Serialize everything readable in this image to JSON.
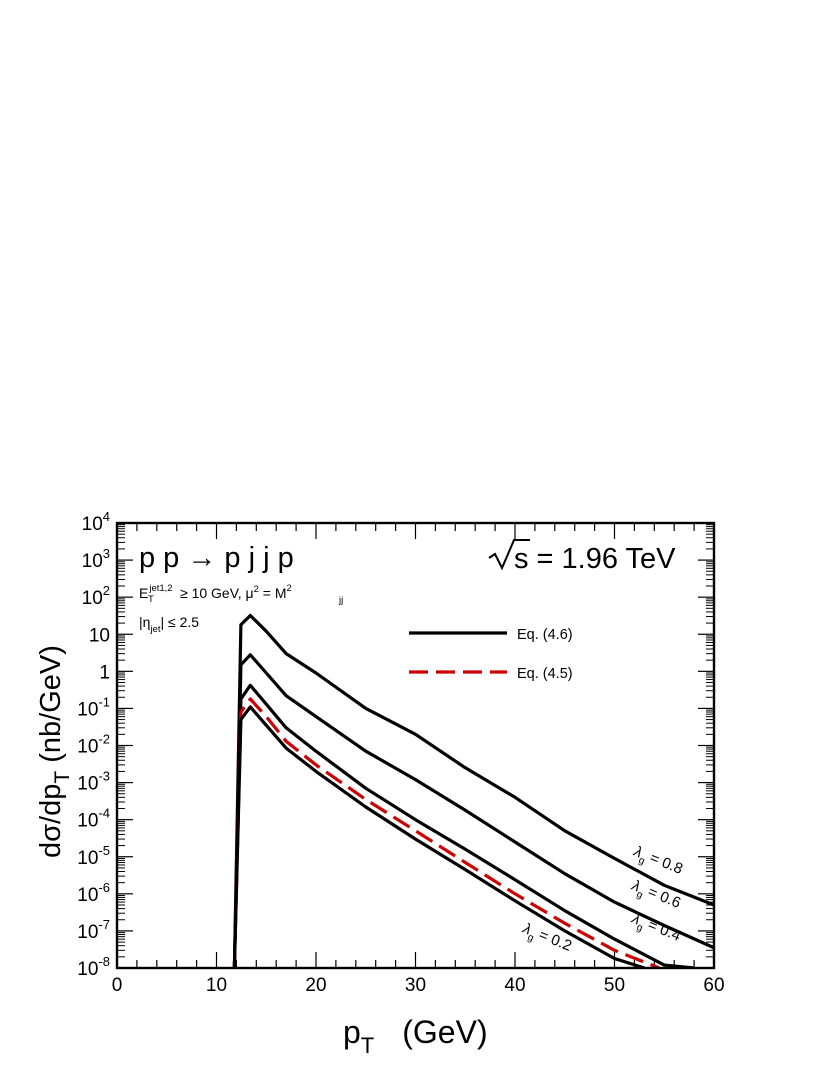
{
  "chart_data": {
    "type": "line",
    "ylog": true,
    "xlim": [
      0,
      60
    ],
    "ylim_exp": [
      -8,
      4
    ],
    "x_ticks": [
      0,
      10,
      20,
      30,
      40,
      50,
      60
    ],
    "x_tick_labels": [
      "0",
      "10",
      "20",
      "30",
      "40",
      "50",
      "60"
    ],
    "y_tick_labels": [
      {
        "exp": -8,
        "base": "10",
        "sup": "-8"
      },
      {
        "exp": -7,
        "base": "10",
        "sup": "-7"
      },
      {
        "exp": -6,
        "base": "10",
        "sup": "-6"
      },
      {
        "exp": -5,
        "base": "10",
        "sup": "-5"
      },
      {
        "exp": -4,
        "base": "10",
        "sup": "-4"
      },
      {
        "exp": -3,
        "base": "10",
        "sup": "-3"
      },
      {
        "exp": -2,
        "base": "10",
        "sup": "-2"
      },
      {
        "exp": -1,
        "base": "10",
        "sup": "-1"
      },
      {
        "exp": 0,
        "base": "1",
        "sup": ""
      },
      {
        "exp": 1,
        "base": "10",
        "sup": ""
      },
      {
        "exp": 2,
        "base": "10",
        "sup": "2"
      },
      {
        "exp": 3,
        "base": "10",
        "sup": "3"
      },
      {
        "exp": 4,
        "base": "10",
        "sup": "4"
      }
    ],
    "xlabel": {
      "main": "p",
      "sub": "T",
      "unit": "(GeV)"
    },
    "ylabel": {
      "p1": "dσ/dp",
      "sub": "T",
      "p2": " (nb/GeV)"
    },
    "annotations": {
      "process": "p p → p j j p",
      "sqrt_s": "s = 1.96 TeV",
      "cut_E": {
        "E": "E",
        "sup": "jet1,2",
        "sub": "T",
        "rest": "≥ 10 GeV,  μ",
        "mu_sup": "2",
        "eq": " = M",
        "m_sup": "2",
        "m_sub": "jj"
      },
      "cut_eta": {
        "open": "|η",
        "sub": "jet",
        "rest": "| ≤ 2.5"
      }
    },
    "legend": [
      {
        "label": "Eq. (4.6)",
        "color": "#000000",
        "dash": "solid"
      },
      {
        "label": "Eq. (4.5)",
        "color": "#cc0000",
        "dash": "dashed"
      }
    ],
    "curve_labels": [
      {
        "lambda": "λ",
        "sub": "g",
        "text": " = 0.8"
      },
      {
        "lambda": "λ",
        "sub": "g",
        "text": " = 0.6"
      },
      {
        "lambda": "λ",
        "sub": "g",
        "text": " = 0.4"
      },
      {
        "lambda": "λ",
        "sub": "g",
        "text": " = 0.2"
      }
    ],
    "series": [
      {
        "name": "λg = 0.8, Eq. (4.6)",
        "color": "#000000",
        "dash": "solid",
        "points": [
          [
            11.8,
            1e-08
          ],
          [
            12.45,
            18
          ],
          [
            13.4,
            32
          ],
          [
            15,
            12
          ],
          [
            17,
            3
          ],
          [
            20,
            0.9
          ],
          [
            25,
            0.1
          ],
          [
            30,
            0.02
          ],
          [
            35,
            0.0025
          ],
          [
            40,
            0.0004
          ],
          [
            45,
            5e-05
          ],
          [
            50,
            9e-06
          ],
          [
            55,
            1.7e-06
          ],
          [
            60,
            5e-07
          ]
        ]
      },
      {
        "name": "λg = 0.6, Eq. (4.6)",
        "color": "#000000",
        "dash": "solid",
        "points": [
          [
            11.8,
            1e-08
          ],
          [
            12.45,
            1.5
          ],
          [
            13.4,
            2.8
          ],
          [
            15,
            0.9
          ],
          [
            17,
            0.22
          ],
          [
            20,
            0.06
          ],
          [
            25,
            0.007
          ],
          [
            30,
            0.0012
          ],
          [
            35,
            0.00018
          ],
          [
            40,
            2.5e-05
          ],
          [
            45,
            3.5e-06
          ],
          [
            50,
            6e-07
          ],
          [
            55,
            1.4e-07
          ],
          [
            60,
            3.5e-08
          ]
        ]
      },
      {
        "name": "λg = 0.4, Eq. (4.6)",
        "color": "#000000",
        "dash": "solid",
        "points": [
          [
            11.8,
            1e-08
          ],
          [
            12.45,
            0.18
          ],
          [
            13.4,
            0.42
          ],
          [
            15,
            0.13
          ],
          [
            17,
            0.03
          ],
          [
            20,
            0.007
          ],
          [
            25,
            0.0007
          ],
          [
            30,
            0.0001
          ],
          [
            35,
            1.6e-05
          ],
          [
            40,
            2.4e-06
          ],
          [
            45,
            3.5e-07
          ],
          [
            50,
            6e-08
          ],
          [
            55,
            1.2e-08
          ],
          [
            58,
            1e-08
          ]
        ]
      },
      {
        "name": "λg = 0.2, Eq. (4.5)",
        "color": "#cc0000",
        "dash": "dashed",
        "points": [
          [
            11.8,
            1e-08
          ],
          [
            12.45,
            0.08
          ],
          [
            13.4,
            0.18
          ],
          [
            15,
            0.06
          ],
          [
            17,
            0.013
          ],
          [
            20,
            0.003
          ],
          [
            25,
            0.00035
          ],
          [
            30,
            5e-05
          ],
          [
            35,
            7e-06
          ],
          [
            40,
            1e-06
          ],
          [
            45,
            1.6e-07
          ],
          [
            50,
            3e-08
          ],
          [
            54.5,
            1e-08
          ]
        ]
      },
      {
        "name": "λg = 0.2, Eq. (4.6)",
        "color": "#000000",
        "dash": "solid",
        "points": [
          [
            11.8,
            1e-08
          ],
          [
            12.45,
            0.05
          ],
          [
            13.4,
            0.11
          ],
          [
            15,
            0.035
          ],
          [
            17,
            0.0085
          ],
          [
            20,
            0.002
          ],
          [
            25,
            0.00022
          ],
          [
            30,
            3e-05
          ],
          [
            35,
            4.5e-06
          ],
          [
            40,
            6.5e-07
          ],
          [
            45,
            1e-07
          ],
          [
            50,
            1.8e-08
          ],
          [
            53,
            1e-08
          ]
        ]
      }
    ]
  }
}
